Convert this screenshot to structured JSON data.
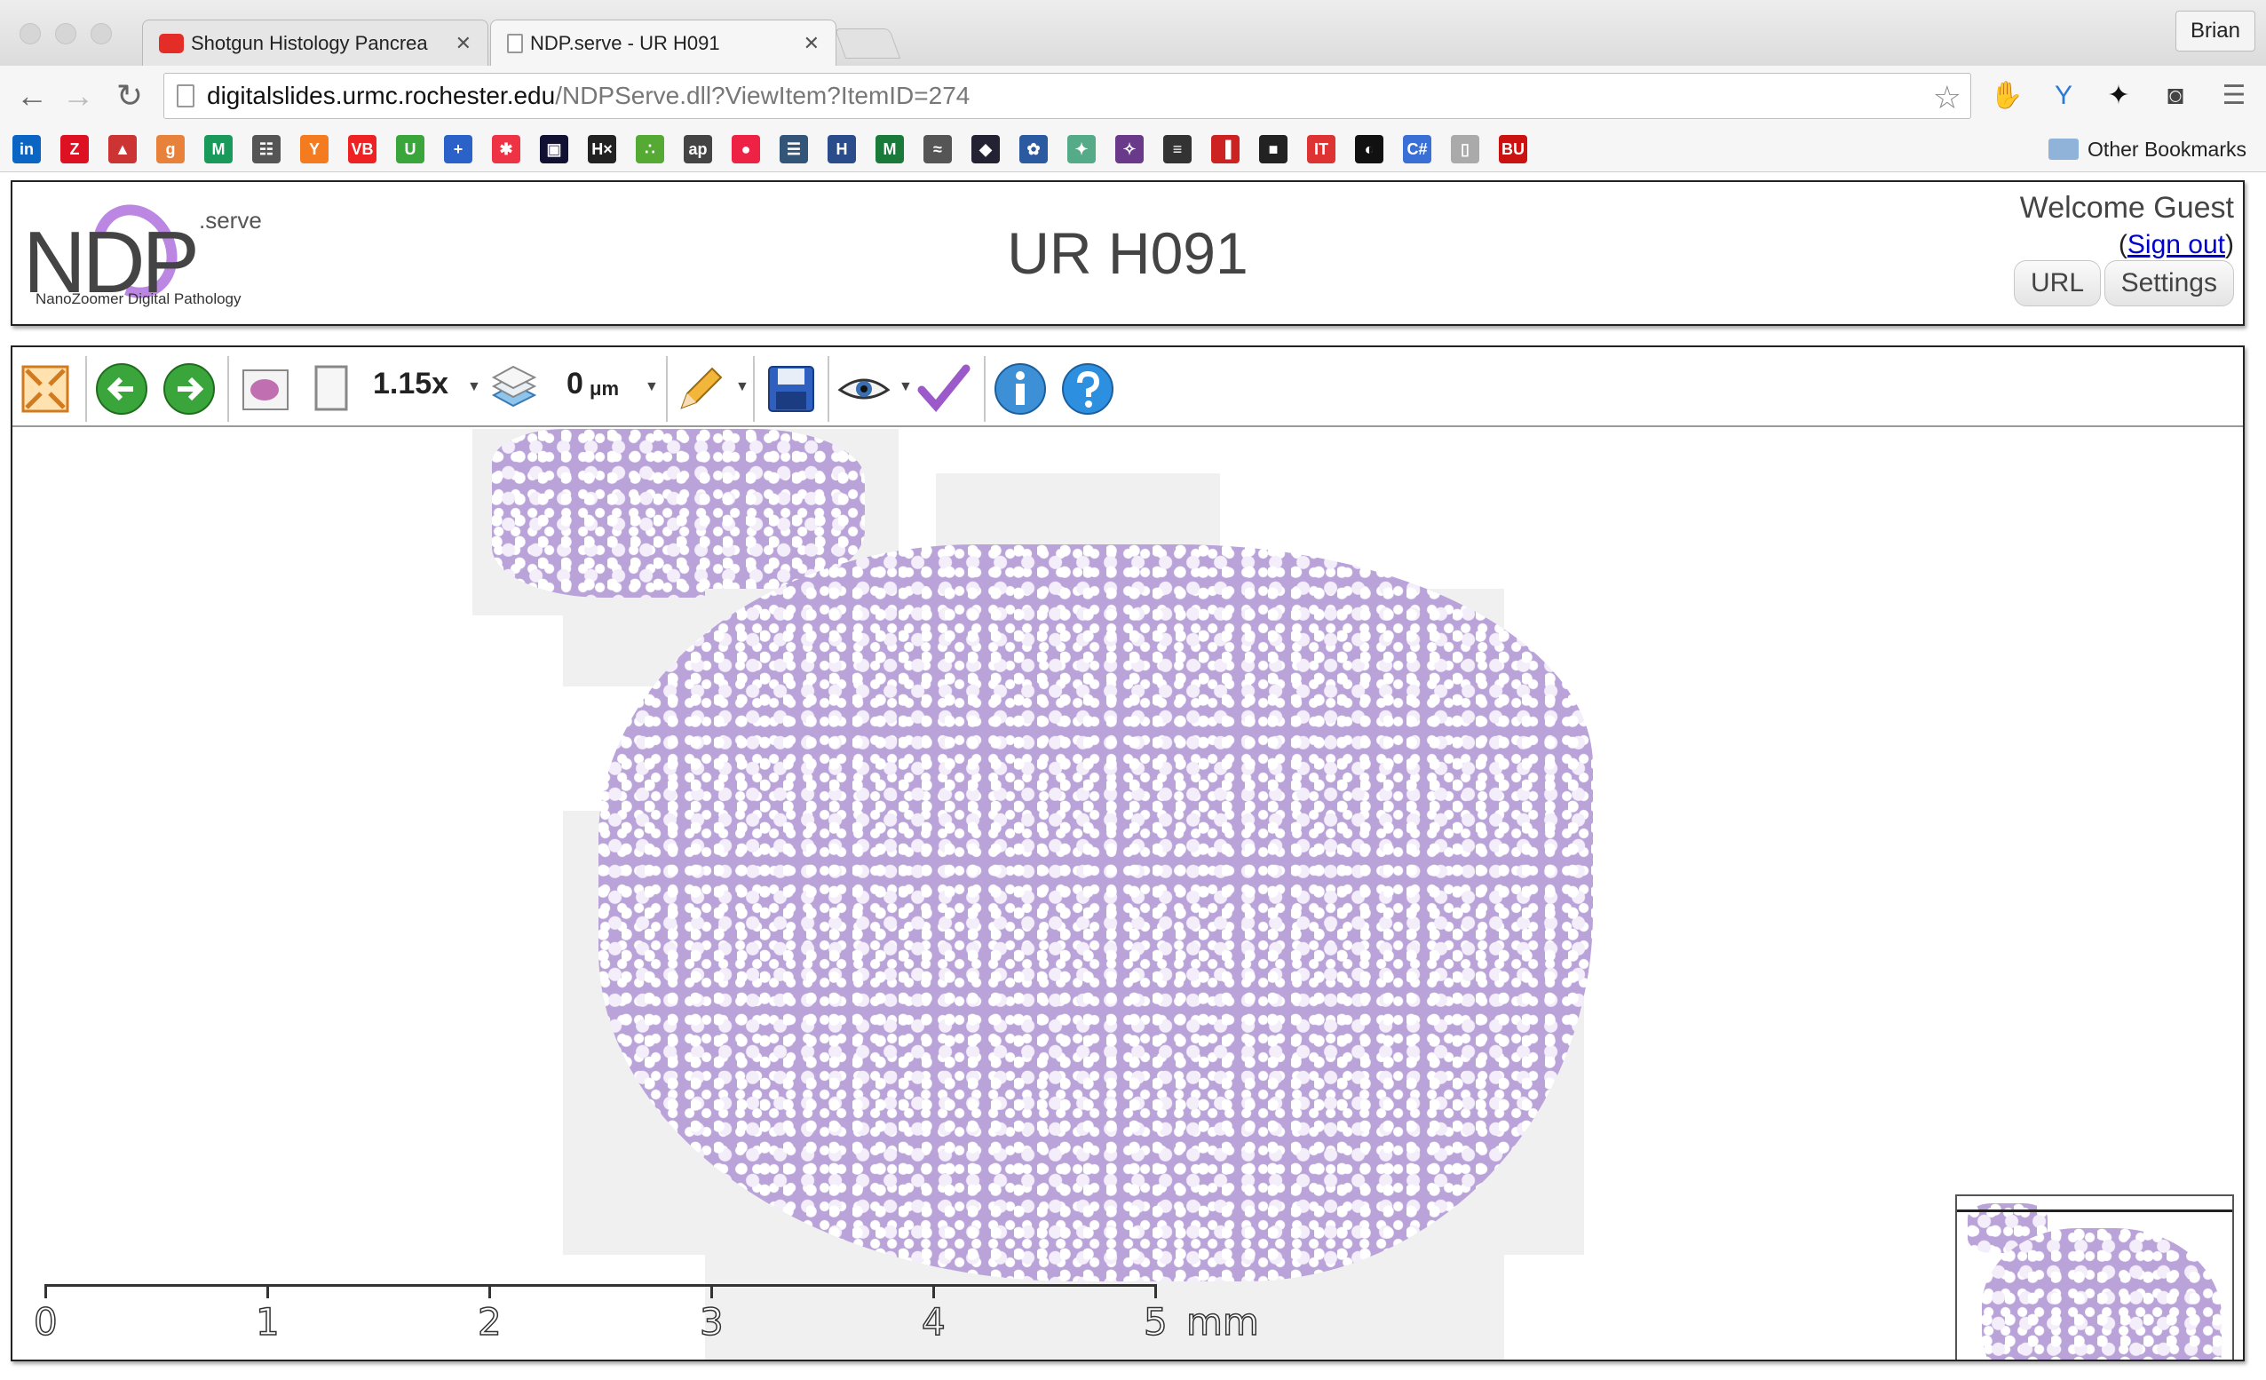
{
  "browser": {
    "tabs": [
      {
        "label": "Shotgun Histology Pancrea",
        "active": false,
        "icon": "youtube-icon"
      },
      {
        "label": "NDP.serve - UR H091",
        "active": true,
        "icon": "page-icon"
      }
    ],
    "profile_name": "Brian",
    "url_host": "digitalslides.urmc.rochester.edu",
    "url_path": "/NDPServe.dll?ViewItem?ItemID=274",
    "bookmarks_other": "Other Bookmarks",
    "bookmark_glyphs": [
      "in",
      "Z",
      "▲",
      "g",
      "M",
      "☷",
      "Y",
      "VB",
      "U",
      "+",
      "✱",
      "▣",
      "H×",
      "∴",
      "ap",
      "●",
      "☰",
      "H",
      "M",
      "≈",
      "◆",
      "✿",
      "✦",
      "✧",
      "≡",
      "▐",
      "■",
      "IT",
      "◐",
      "C#",
      "▯",
      "BU"
    ]
  },
  "ndp": {
    "logo_letters": "NDP",
    "logo_suffix": ".serve",
    "logo_tagline": "NanoZoomer Digital Pathology",
    "slide_title": "UR H091",
    "welcome": "Welcome Guest",
    "signout_open": "(",
    "signout_label": "Sign out",
    "signout_close": ")",
    "url_button": "URL",
    "settings_button": "Settings"
  },
  "viewer": {
    "magnification": "1.15x",
    "focus_value": "0",
    "focus_unit": "μm",
    "scale_ticks": [
      "0",
      "1",
      "2",
      "3",
      "4",
      "5"
    ],
    "scale_unit": "mm"
  },
  "colors": {
    "tissue": "#b9a3d9",
    "logo_swoosh": "#b57be0",
    "link": "#0000cc"
  }
}
